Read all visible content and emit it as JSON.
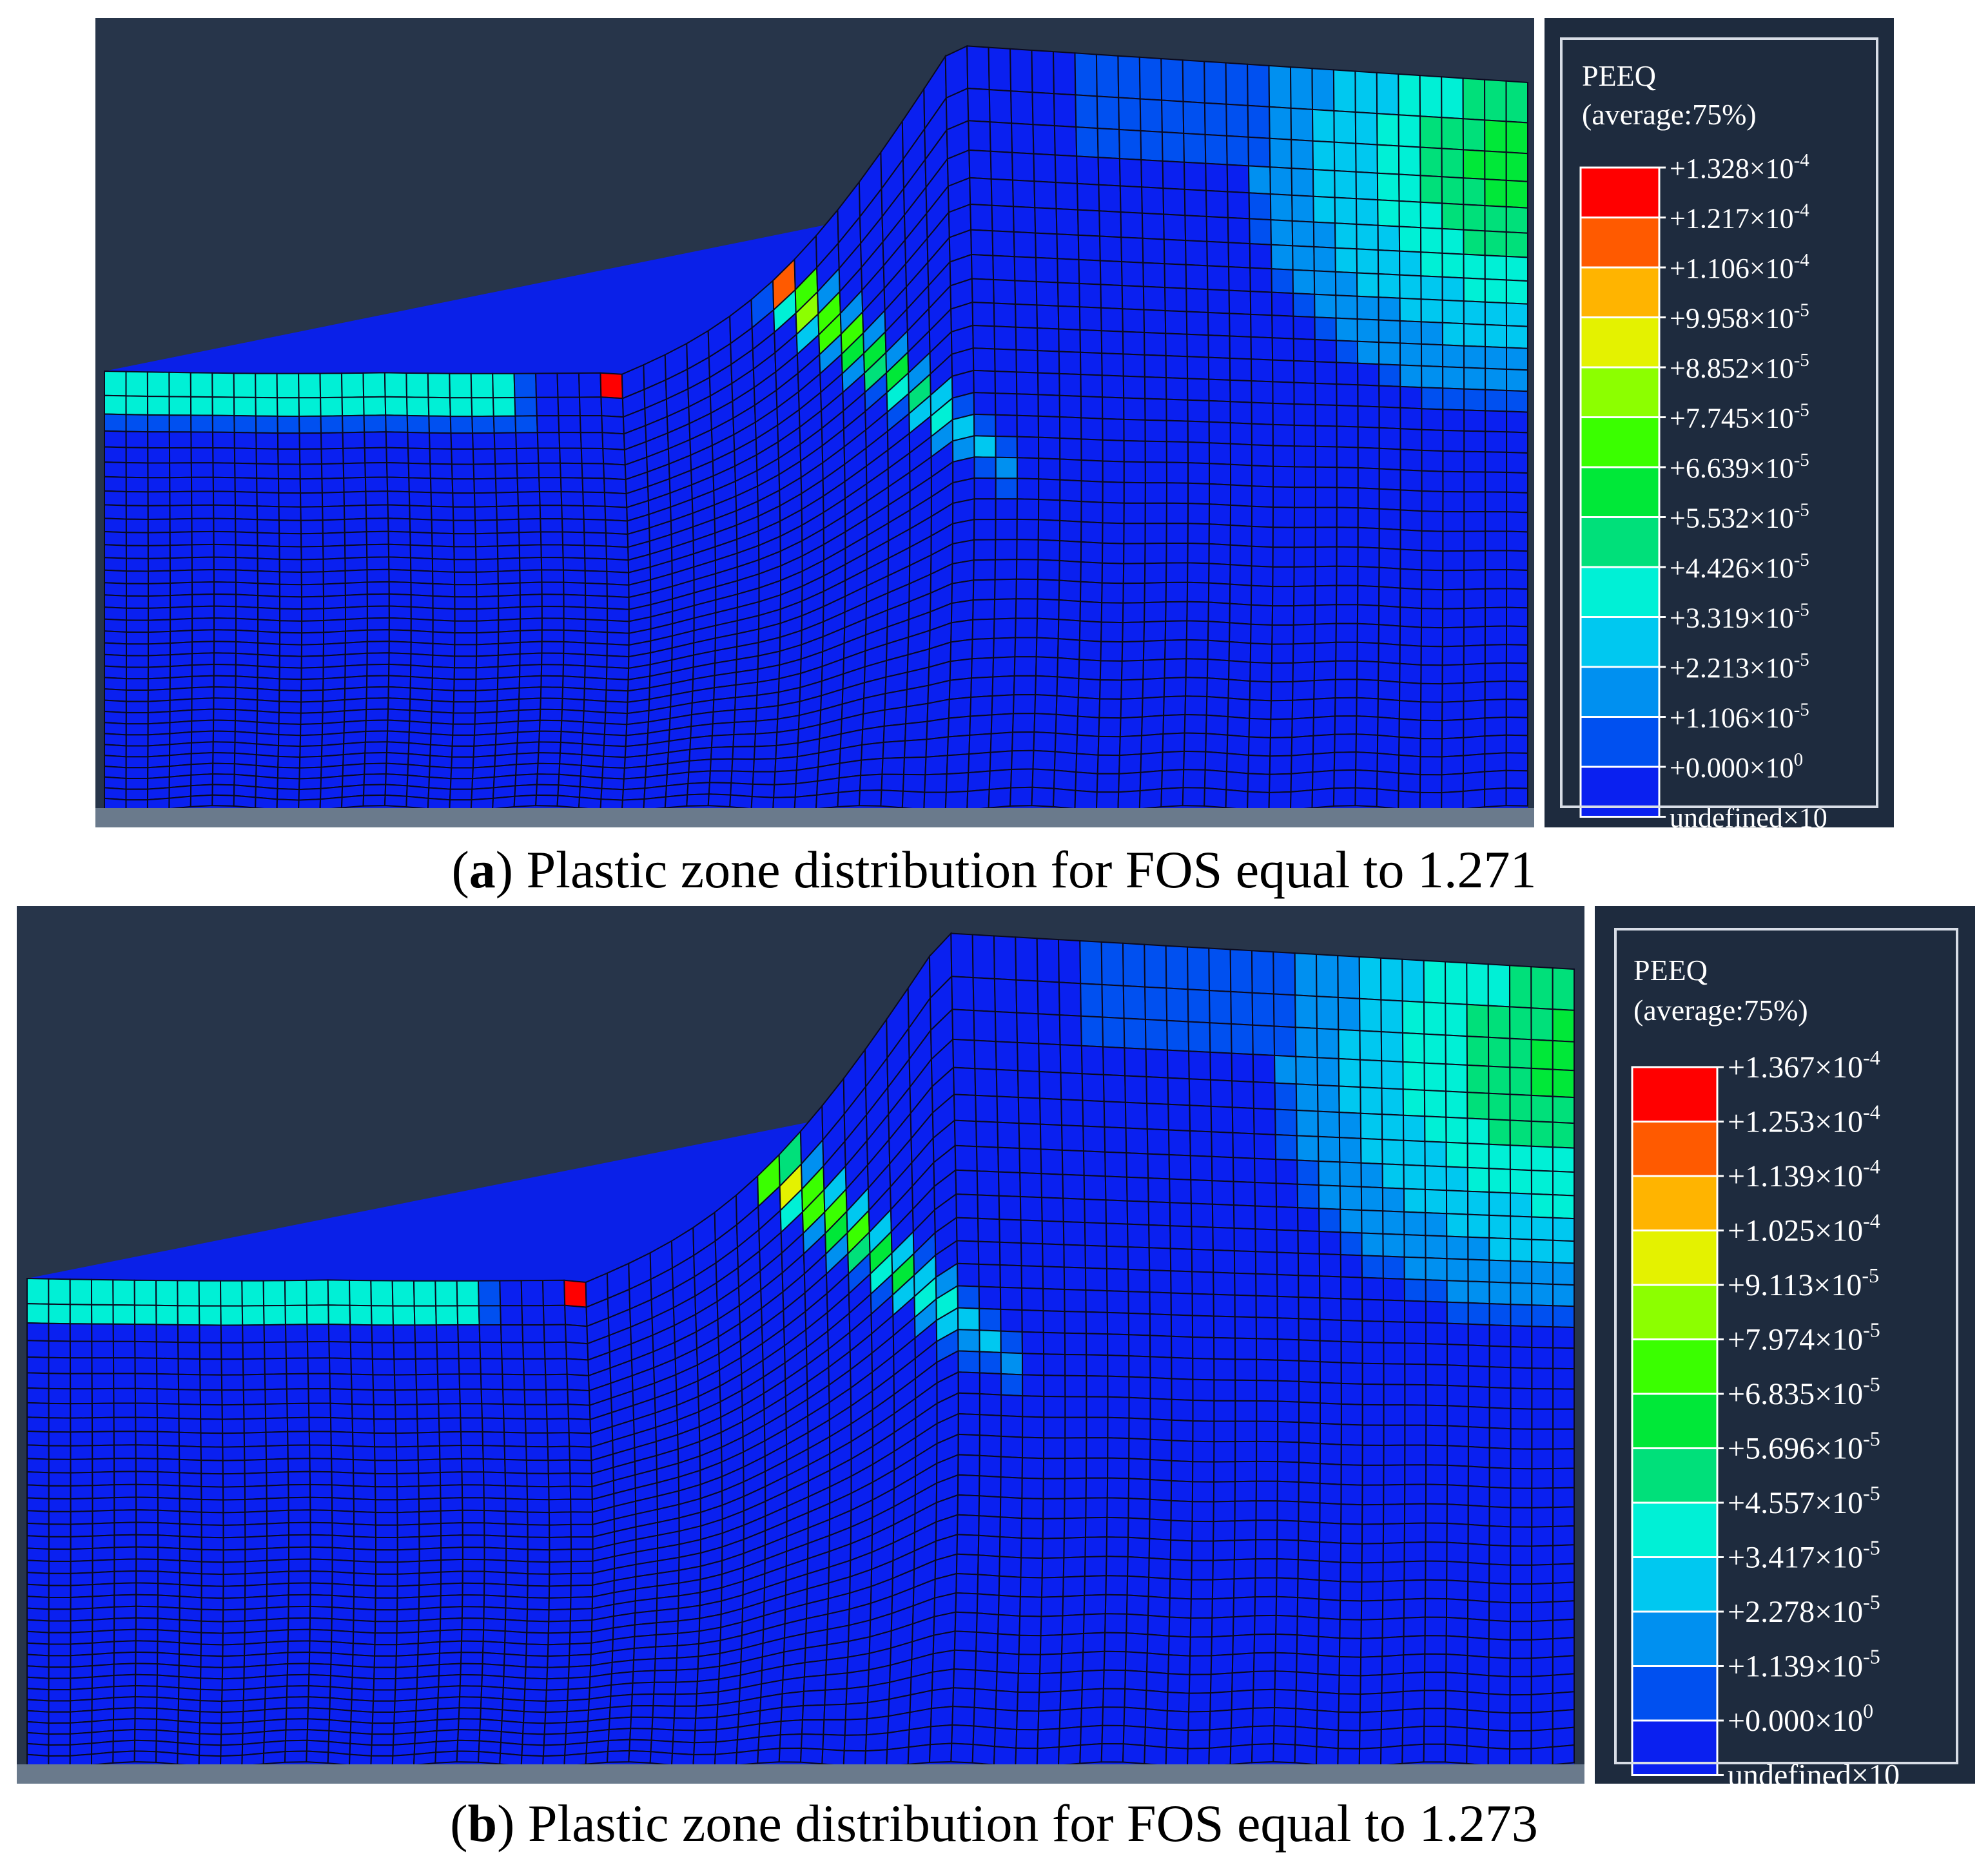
{
  "panels": [
    {
      "legend": {
        "title": "PEEQ",
        "subtitle": "(average:75%)",
        "values": [
          "+1.328×10-4",
          "+1.217×10-4",
          "+1.106×10-4",
          "+9.958×10-5",
          "+8.852×10-5",
          "+7.745×10-5",
          "+6.639×10-5",
          "+5.532×10-5",
          "+4.426×10-5",
          "+3.319×10-5",
          "+2.213×10-5",
          "+1.106×10-5",
          "+0.000×100"
        ],
        "mantissas": [
          "+1.328",
          "+1.217",
          "+1.106",
          "+9.958",
          "+8.852",
          "+7.745",
          "+6.639",
          "+5.532",
          "+4.426",
          "+3.319",
          "+2.213",
          "+1.106",
          "+0.000"
        ],
        "exponents": [
          "-4",
          "-4",
          "-4",
          "-5",
          "-5",
          "-5",
          "-5",
          "-5",
          "-5",
          "-5",
          "-5",
          "-5",
          "0"
        ]
      },
      "caption": {
        "letter": "a",
        "text": "Plastic zone distribution for FOS equal to 1.271"
      }
    },
    {
      "legend": {
        "title": "PEEQ",
        "subtitle": "(average:75%)",
        "values": [
          "+1.367×10-4",
          "+1.253×10-4",
          "+1.139×10-4",
          "+1.025×10-4",
          "+9.113×10-5",
          "+7.974×10-5",
          "+6.835×10-5",
          "+5.696×10-5",
          "+4.557×10-5",
          "+3.417×10-5",
          "+2.278×10-5",
          "+1.139×10-5",
          "+0.000×100"
        ],
        "mantissas": [
          "+1.367",
          "+1.253",
          "+1.139",
          "+1.025",
          "+9.113",
          "+7.974",
          "+6.835",
          "+5.696",
          "+4.557",
          "+3.417",
          "+2.278",
          "+1.139",
          "+0.000"
        ],
        "exponents": [
          "-4",
          "-4",
          "-4",
          "-4",
          "-5",
          "-5",
          "-5",
          "-5",
          "-5",
          "-5",
          "-5",
          "-5",
          "0"
        ]
      },
      "caption": {
        "letter": "b",
        "text": "Plastic zone distribution for FOS equal to 1.273"
      }
    }
  ],
  "colorbar": [
    "#ff0000",
    "#ff5a00",
    "#ffb400",
    "#e4f200",
    "#8cff00",
    "#3aff00",
    "#00e838",
    "#00e07a",
    "#00f0d6",
    "#00c8f0",
    "#0090f0",
    "#0050f0",
    "#0a20f0"
  ],
  "colors": {
    "viewport_bg": "#27354a",
    "mesh_base": "#0a20e8",
    "mesh_line": "#0a0a20",
    "legend_bg": "#1e2b3e",
    "floor": "#6a7a8c"
  }
}
